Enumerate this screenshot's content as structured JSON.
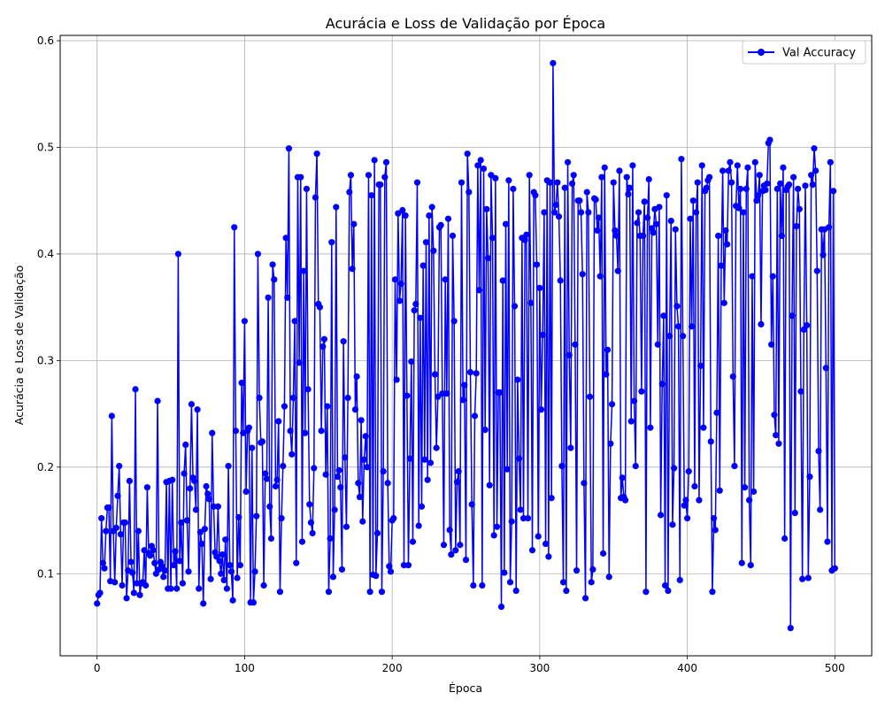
{
  "chart_data": {
    "type": "line",
    "title": "Acurácia e Loss de Validação por Época",
    "xlabel": "Época",
    "ylabel": "Acurácia e Loss de Validação",
    "xlim": [
      -25,
      525
    ],
    "ylim": [
      0.023,
      0.605
    ],
    "xticks": [
      0,
      100,
      200,
      300,
      400,
      500
    ],
    "yticks": [
      0.1,
      0.2,
      0.3,
      0.4,
      0.5,
      0.6
    ],
    "xtick_labels": [
      "0",
      "100",
      "200",
      "300",
      "400",
      "500"
    ],
    "ytick_labels": [
      "0.1",
      "0.2",
      "0.3",
      "0.4",
      "0.5",
      "0.6"
    ],
    "grid": true,
    "legend_position": "top-right",
    "series": [
      {
        "name": "Val Accuracy",
        "color": "#0000ff",
        "marker": "circle",
        "x_start": 0,
        "x_step": 1,
        "y": [
          0.072,
          0.08,
          0.082,
          0.152,
          0.11,
          0.105,
          0.14,
          0.162,
          0.162,
          0.093,
          0.248,
          0.14,
          0.092,
          0.143,
          0.173,
          0.201,
          0.137,
          0.089,
          0.148,
          0.148,
          0.077,
          0.103,
          0.187,
          0.111,
          0.101,
          0.082,
          0.273,
          0.091,
          0.14,
          0.08,
          0.091,
          0.092,
          0.122,
          0.089,
          0.181,
          0.119,
          0.117,
          0.126,
          0.122,
          0.11,
          0.1,
          0.262,
          0.104,
          0.111,
          0.107,
          0.097,
          0.103,
          0.186,
          0.086,
          0.187,
          0.086,
          0.188,
          0.108,
          0.121,
          0.086,
          0.4,
          0.112,
          0.148,
          0.091,
          0.194,
          0.221,
          0.15,
          0.102,
          0.18,
          0.259,
          0.19,
          0.187,
          0.16,
          0.254,
          0.086,
          0.139,
          0.128,
          0.072,
          0.142,
          0.182,
          0.175,
          0.17,
          0.095,
          0.232,
          0.163,
          0.12,
          0.116,
          0.163,
          0.112,
          0.1,
          0.118,
          0.094,
          0.132,
          0.086,
          0.201,
          0.108,
          0.102,
          0.075,
          0.425,
          0.234,
          0.096,
          0.153,
          0.108,
          0.279,
          0.232,
          0.337,
          0.177,
          0.234,
          0.237,
          0.073,
          0.218,
          0.073,
          0.102,
          0.154,
          0.4,
          0.265,
          0.223,
          0.224,
          0.089,
          0.194,
          0.189,
          0.359,
          0.163,
          0.133,
          0.39,
          0.376,
          0.182,
          0.188,
          0.243,
          0.083,
          0.152,
          0.201,
          0.257,
          0.415,
          0.359,
          0.499,
          0.234,
          0.212,
          0.265,
          0.337,
          0.11,
          0.472,
          0.298,
          0.472,
          0.13,
          0.384,
          0.232,
          0.461,
          0.273,
          0.165,
          0.148,
          0.138,
          0.199,
          0.453,
          0.494,
          0.353,
          0.35,
          0.234,
          0.313,
          0.32,
          0.193,
          0.257,
          0.083,
          0.133,
          0.411,
          0.097,
          0.16,
          0.444,
          0.191,
          0.197,
          0.181,
          0.104,
          0.318,
          0.209,
          0.144,
          0.265,
          0.458,
          0.474,
          0.386,
          0.428,
          0.254,
          0.285,
          0.185,
          0.172,
          0.244,
          0.149,
          0.207,
          0.229,
          0.2,
          0.474,
          0.083,
          0.455,
          0.099,
          0.488,
          0.098,
          0.138,
          0.465,
          0.465,
          0.083,
          0.196,
          0.472,
          0.486,
          0.185,
          0.107,
          0.102,
          0.15,
          0.152,
          0.376,
          0.282,
          0.438,
          0.356,
          0.372,
          0.441,
          0.108,
          0.436,
          0.267,
          0.108,
          0.208,
          0.299,
          0.13,
          0.347,
          0.353,
          0.467,
          0.145,
          0.34,
          0.163,
          0.389,
          0.207,
          0.411,
          0.188,
          0.436,
          0.204,
          0.444,
          0.403,
          0.287,
          0.218,
          0.266,
          0.425,
          0.427,
          0.269,
          0.127,
          0.376,
          0.269,
          0.433,
          0.141,
          0.118,
          0.417,
          0.337,
          0.122,
          0.186,
          0.196,
          0.127,
          0.467,
          0.263,
          0.277,
          0.113,
          0.494,
          0.458,
          0.289,
          0.165,
          0.089,
          0.248,
          0.288,
          0.483,
          0.366,
          0.488,
          0.089,
          0.48,
          0.235,
          0.442,
          0.396,
          0.183,
          0.474,
          0.415,
          0.136,
          0.471,
          0.144,
          0.27,
          0.27,
          0.069,
          0.375,
          0.101,
          0.428,
          0.198,
          0.469,
          0.092,
          0.149,
          0.461,
          0.351,
          0.084,
          0.282,
          0.208,
          0.16,
          0.415,
          0.152,
          0.413,
          0.418,
          0.152,
          0.474,
          0.354,
          0.122,
          0.458,
          0.455,
          0.39,
          0.135,
          0.368,
          0.254,
          0.324,
          0.439,
          0.128,
          0.469,
          0.116,
          0.467,
          0.171,
          0.579,
          0.439,
          0.446,
          0.467,
          0.435,
          0.375,
          0.201,
          0.092,
          0.462,
          0.084,
          0.486,
          0.305,
          0.218,
          0.466,
          0.474,
          0.315,
          0.103,
          0.45,
          0.45,
          0.439,
          0.381,
          0.185,
          0.077,
          0.458,
          0.439,
          0.266,
          0.092,
          0.104,
          0.452,
          0.451,
          0.422,
          0.434,
          0.379,
          0.472,
          0.119,
          0.481,
          0.287,
          0.31,
          0.097,
          0.222,
          0.259,
          0.467,
          0.422,
          0.417,
          0.384,
          0.478,
          0.171,
          0.19,
          0.172,
          0.169,
          0.472,
          0.456,
          0.462,
          0.243,
          0.483,
          0.262,
          0.201,
          0.429,
          0.439,
          0.417,
          0.271,
          0.417,
          0.449,
          0.083,
          0.434,
          0.47,
          0.237,
          0.424,
          0.42,
          0.442,
          0.428,
          0.315,
          0.444,
          0.155,
          0.278,
          0.342,
          0.089,
          0.455,
          0.084,
          0.323,
          0.431,
          0.146,
          0.199,
          0.423,
          0.351,
          0.332,
          0.094,
          0.489,
          0.323,
          0.164,
          0.169,
          0.152,
          0.196,
          0.433,
          0.332,
          0.45,
          0.182,
          0.439,
          0.467,
          0.169,
          0.295,
          0.483,
          0.237,
          0.459,
          0.462,
          0.469,
          0.472,
          0.224,
          0.083,
          0.152,
          0.141,
          0.251,
          0.417,
          0.178,
          0.389,
          0.478,
          0.354,
          0.422,
          0.409,
          0.478,
          0.486,
          0.467,
          0.285,
          0.201,
          0.445,
          0.483,
          0.443,
          0.461,
          0.11,
          0.439,
          0.181,
          0.461,
          0.481,
          0.169,
          0.108,
          0.379,
          0.177,
          0.486,
          0.45,
          0.455,
          0.474,
          0.334,
          0.459,
          0.464,
          0.46,
          0.466,
          0.504,
          0.507,
          0.315,
          0.379,
          0.249,
          0.23,
          0.461,
          0.222,
          0.466,
          0.417,
          0.481,
          0.133,
          0.46,
          0.463,
          0.465,
          0.049,
          0.342,
          0.472,
          0.157,
          0.426,
          0.461,
          0.442,
          0.271,
          0.095,
          0.329,
          0.464,
          0.333,
          0.096,
          0.191,
          0.474,
          0.465,
          0.499,
          0.478,
          0.384,
          0.215,
          0.16,
          0.423,
          0.399,
          0.423,
          0.293,
          0.13,
          0.425,
          0.486,
          0.103,
          0.459,
          0.105
        ]
      }
    ]
  }
}
